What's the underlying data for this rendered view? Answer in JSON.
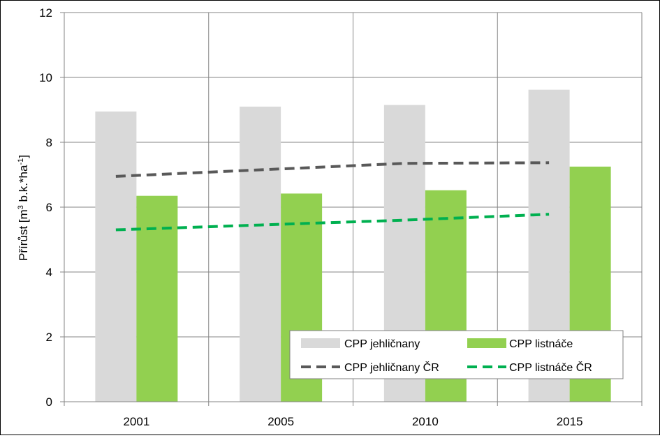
{
  "chart_data": {
    "type": "bar",
    "categories": [
      "2001",
      "2005",
      "2010",
      "2015"
    ],
    "series": [
      {
        "name": "CPP jehličnany",
        "kind": "bar",
        "color": "#d9d9d9",
        "values": [
          8.95,
          9.1,
          9.15,
          9.62
        ]
      },
      {
        "name": "CPP listnáče",
        "kind": "bar",
        "color": "#92d050",
        "values": [
          6.35,
          6.42,
          6.52,
          7.25
        ]
      },
      {
        "name": "CPP jehličnany ČR",
        "kind": "dashed-line",
        "color": "#595959",
        "values": [
          6.95,
          7.15,
          7.35,
          7.37
        ]
      },
      {
        "name": "CPP listnáče ČR",
        "kind": "dashed-line",
        "color": "#00b050",
        "values": [
          5.3,
          5.45,
          5.6,
          5.78
        ]
      }
    ],
    "ylabel_main": "Přírůst [m",
    "ylabel_sup1": "3",
    "ylabel_mid": " b.k.*ha",
    "ylabel_sup2": "-1",
    "ylabel_end": "]",
    "yticks": [
      "0",
      "2",
      "4",
      "6",
      "8",
      "10",
      "12"
    ],
    "ylim": [
      0,
      12
    ],
    "grid": true,
    "legend_position": "bottom-right"
  }
}
